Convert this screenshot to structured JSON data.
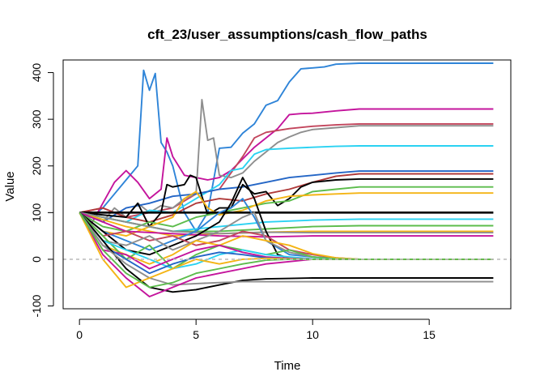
{
  "chart_data": {
    "type": "line",
    "title": "cft_23/user_assumptions/cash_flow_paths",
    "xlabel": "Time",
    "ylabel": "Value",
    "xlim": [
      -0.7,
      18.5
    ],
    "ylim": [
      -106,
      427
    ],
    "x_ticks": [
      0,
      5,
      10,
      15
    ],
    "x_tick_labels": [
      "0",
      "5",
      "10",
      "15"
    ],
    "y_ticks": [
      -100,
      0,
      100,
      200,
      300,
      400
    ],
    "y_tick_labels": [
      "-100",
      "0",
      "100",
      "200",
      "300",
      "400"
    ],
    "grid": false,
    "legend": "none",
    "reference_line": {
      "y": 0,
      "color": "#bebebe",
      "style": "dashed"
    },
    "series": [
      {
        "color": "#2e84d8",
        "x": [
          0,
          0.5,
          1,
          1.5,
          2,
          2.5,
          2.75,
          3,
          3.25,
          3.5,
          3.75,
          4,
          4.5,
          5,
          5.5,
          6,
          6.5,
          7,
          7.5,
          8,
          8.5,
          9,
          9.5,
          10,
          10.5,
          11,
          12,
          14,
          16,
          17.75
        ],
        "values": [
          100,
          90,
          110,
          140,
          170,
          200,
          405,
          362,
          398,
          250,
          230,
          200,
          100,
          60,
          100,
          238,
          240,
          270,
          290,
          330,
          340,
          380,
          408,
          410,
          412,
          418,
          420,
          420,
          420,
          420
        ]
      },
      {
        "color": "#c4149c",
        "x": [
          0,
          0.5,
          1,
          1.5,
          2,
          2.5,
          3,
          3.5,
          3.75,
          4,
          4.5,
          5,
          5.5,
          6,
          6.5,
          7,
          7.5,
          8,
          8.5,
          9,
          9.5,
          10,
          11,
          12,
          14,
          16,
          17.75
        ],
        "values": [
          100,
          75,
          120,
          165,
          190,
          165,
          130,
          150,
          260,
          220,
          180,
          175,
          170,
          175,
          190,
          215,
          240,
          260,
          280,
          310,
          312,
          313,
          318,
          322,
          322,
          322,
          322
        ]
      },
      {
        "color": "#c2455c",
        "x": [
          0,
          1,
          2,
          3,
          4,
          5,
          6,
          7,
          7.5,
          8,
          9,
          10,
          11,
          12,
          14,
          16,
          17.75
        ],
        "values": [
          100,
          110,
          90,
          100,
          110,
          140,
          150,
          220,
          260,
          272,
          280,
          285,
          288,
          290,
          290,
          290,
          290
        ]
      },
      {
        "color": "#8e8e8e",
        "x": [
          0,
          0.5,
          1,
          1.5,
          2,
          2.5,
          3,
          3.5,
          4,
          4.5,
          5,
          5.25,
          5.5,
          5.75,
          6,
          6.5,
          7,
          7.5,
          8,
          8.5,
          9,
          9.5,
          10,
          11,
          12,
          14,
          16,
          17.75
        ],
        "values": [
          100,
          95,
          80,
          110,
          90,
          120,
          100,
          115,
          110,
          130,
          140,
          342,
          255,
          260,
          180,
          175,
          185,
          210,
          230,
          250,
          262,
          272,
          278,
          282,
          286,
          286,
          286,
          286
        ]
      },
      {
        "color": "#2ad2f2",
        "x": [
          0,
          1,
          2,
          3,
          4,
          5,
          6,
          6.5,
          7,
          7.5,
          8,
          9,
          10,
          11,
          12,
          14,
          16,
          17.75
        ],
        "values": [
          100,
          90,
          80,
          105,
          100,
          130,
          160,
          190,
          195,
          225,
          235,
          238,
          240,
          242,
          243,
          243,
          243,
          243
        ]
      },
      {
        "color": "#2466c6",
        "x": [
          0,
          1,
          2,
          3,
          4,
          5,
          6,
          7,
          8,
          9,
          10,
          11,
          12,
          14,
          16,
          17.75
        ],
        "values": [
          100,
          80,
          110,
          120,
          135,
          140,
          150,
          155,
          165,
          175,
          180,
          185,
          189,
          189,
          189,
          189
        ]
      },
      {
        "color": "#b03a3a",
        "x": [
          0,
          1,
          2,
          3,
          4,
          5,
          6,
          7,
          8,
          9,
          10,
          11,
          12,
          14,
          16,
          17.75
        ],
        "values": [
          100,
          110,
          90,
          80,
          95,
          120,
          130,
          125,
          140,
          150,
          165,
          178,
          183,
          183,
          183,
          183
        ]
      },
      {
        "color": "#000000",
        "x": [
          0,
          1,
          2,
          2.5,
          3,
          3.5,
          3.75,
          4,
          4.5,
          4.75,
          5,
          5.5,
          6,
          6.5,
          7,
          7.5,
          8,
          8.5,
          9,
          9.5,
          10,
          11,
          12,
          14,
          16,
          17.75
        ],
        "values": [
          100,
          95,
          90,
          120,
          70,
          100,
          160,
          155,
          160,
          180,
          175,
          95,
          110,
          110,
          160,
          140,
          145,
          115,
          130,
          155,
          165,
          170,
          172,
          172,
          172,
          172
        ]
      },
      {
        "color": "#5cbc4c",
        "x": [
          0,
          1,
          2,
          3,
          4,
          5,
          6,
          7,
          8,
          9,
          9.5,
          10,
          11,
          12,
          14,
          16,
          17.75
        ],
        "values": [
          100,
          70,
          60,
          80,
          70,
          90,
          100,
          110,
          120,
          125,
          135,
          145,
          150,
          155,
          155,
          155,
          155
        ]
      },
      {
        "color": "#f4b414",
        "x": [
          0,
          1,
          2,
          3,
          4,
          4.5,
          5,
          5.5,
          6,
          7,
          8,
          9,
          10,
          11,
          12,
          14,
          16,
          17.75
        ],
        "values": [
          100,
          60,
          50,
          70,
          90,
          130,
          145,
          110,
          95,
          105,
          125,
          135,
          138,
          140,
          142,
          142,
          142,
          142
        ]
      },
      {
        "color": "#000000",
        "x": [
          0,
          17.75
        ],
        "values": [
          100,
          100
        ],
        "width": 2.6
      },
      {
        "color": "#2ad2f2",
        "x": [
          0,
          2,
          4,
          6,
          8,
          10,
          12,
          14,
          16,
          17.75
        ],
        "values": [
          100,
          80,
          60,
          70,
          80,
          84,
          86,
          86,
          86,
          86
        ]
      },
      {
        "color": "#5cbc4c",
        "x": [
          0,
          2,
          4,
          6,
          8,
          10,
          12,
          14,
          16,
          17.75
        ],
        "values": [
          100,
          80,
          60,
          60,
          65,
          70,
          72,
          72,
          72,
          72
        ]
      },
      {
        "color": "#f4b414",
        "x": [
          0,
          2,
          4,
          6,
          8,
          10,
          12,
          14,
          16,
          17.75
        ],
        "values": [
          100,
          70,
          50,
          55,
          58,
          60,
          60,
          60,
          60,
          60
        ]
      },
      {
        "color": "#8e8e8e",
        "x": [
          0,
          2,
          4,
          6,
          8,
          10,
          12,
          14,
          16,
          17.75
        ],
        "values": [
          100,
          80,
          60,
          55,
          58,
          57,
          57,
          57,
          57,
          57
        ]
      },
      {
        "color": "#c4149c",
        "x": [
          0,
          2,
          4,
          6,
          8,
          10,
          12,
          14,
          16,
          17.75
        ],
        "values": [
          100,
          60,
          55,
          50,
          48,
          50,
          50,
          50,
          50,
          50
        ]
      },
      {
        "color": "#2e84d8",
        "x": [
          0,
          1,
          2,
          3,
          4,
          5,
          6,
          6.5,
          7,
          7.5,
          8,
          9,
          10,
          11,
          12,
          14,
          16,
          17.75
        ],
        "values": [
          100,
          60,
          40,
          20,
          40,
          60,
          100,
          110,
          130,
          90,
          40,
          10,
          5,
          2,
          0,
          0,
          0,
          0
        ]
      },
      {
        "color": "#000000",
        "x": [
          0,
          1,
          2,
          3,
          4,
          5,
          6,
          6.5,
          7,
          7.5,
          8,
          8.5,
          9,
          10,
          12,
          14,
          16,
          17.75
        ],
        "values": [
          100,
          60,
          20,
          10,
          30,
          50,
          80,
          120,
          175,
          130,
          60,
          10,
          2,
          0,
          0,
          0,
          0,
          0
        ]
      },
      {
        "color": "#c2455c",
        "x": [
          0,
          1,
          2,
          3,
          4,
          5,
          6,
          7,
          8,
          9,
          10,
          11,
          12,
          14,
          16,
          17.75
        ],
        "values": [
          100,
          50,
          60,
          40,
          50,
          30,
          40,
          60,
          50,
          20,
          10,
          3,
          0,
          0,
          0,
          0
        ]
      },
      {
        "color": "#8e8e8e",
        "x": [
          0,
          1,
          2,
          3,
          4,
          5,
          6,
          7,
          7.5,
          8,
          9,
          10,
          11,
          12,
          14,
          16,
          17.75
        ],
        "values": [
          100,
          40,
          30,
          50,
          20,
          40,
          60,
          90,
          100,
          40,
          15,
          5,
          1,
          0,
          0,
          0,
          0
        ]
      },
      {
        "color": "#f4b414",
        "x": [
          0,
          1,
          2,
          3,
          4,
          5,
          6,
          7,
          8,
          9,
          10,
          11,
          12,
          14,
          16,
          17.75
        ],
        "values": [
          100,
          30,
          10,
          -10,
          10,
          40,
          30,
          50,
          40,
          30,
          12,
          3,
          0,
          0,
          0,
          0
        ]
      },
      {
        "color": "#5cbc4c",
        "x": [
          0,
          1,
          2,
          3,
          4,
          5,
          6,
          7,
          8,
          9,
          10,
          11,
          12,
          14,
          16,
          17.75
        ],
        "values": [
          100,
          50,
          0,
          30,
          -20,
          10,
          30,
          20,
          10,
          20,
          5,
          1,
          0,
          0,
          0,
          0
        ]
      },
      {
        "color": "#2ad2f2",
        "x": [
          0,
          1,
          2,
          3,
          4,
          5,
          6,
          7,
          8,
          9,
          10,
          11,
          12,
          14,
          16,
          17.75
        ],
        "values": [
          100,
          40,
          20,
          0,
          -20,
          -10,
          10,
          20,
          10,
          5,
          1,
          0,
          0,
          0,
          0,
          0
        ]
      },
      {
        "color": "#c4149c",
        "x": [
          0,
          1,
          2,
          3,
          4,
          5,
          6,
          7,
          8,
          9,
          10,
          11,
          12,
          14,
          16,
          17.75
        ],
        "values": [
          100,
          20,
          10,
          -20,
          0,
          20,
          30,
          15,
          5,
          2,
          0,
          0,
          0,
          0,
          0,
          0
        ]
      },
      {
        "color": "#2466c6",
        "x": [
          0,
          1,
          2,
          3,
          4,
          5,
          6,
          7,
          8,
          9,
          10,
          12,
          14,
          16,
          17.75
        ],
        "values": [
          100,
          30,
          0,
          -30,
          -10,
          5,
          15,
          10,
          3,
          1,
          0,
          0,
          0,
          0,
          0
        ]
      },
      {
        "color": "#000000",
        "x": [
          0,
          1,
          2,
          3,
          4,
          5,
          6,
          7,
          8,
          9,
          10,
          11,
          12,
          14,
          16,
          17.75
        ],
        "values": [
          100,
          40,
          -20,
          -60,
          -70,
          -65,
          -55,
          -45,
          -42,
          -41,
          -40,
          -40,
          -40,
          -40,
          -40,
          -40
        ]
      },
      {
        "color": "#8e8e8e",
        "x": [
          0,
          1,
          2,
          3,
          4,
          5,
          6,
          7,
          8,
          9,
          10,
          11,
          12,
          14,
          16,
          17.75
        ],
        "values": [
          100,
          30,
          -10,
          -40,
          -55,
          -52,
          -50,
          -48,
          -48,
          -48,
          -48,
          -48,
          -48,
          -48,
          -48,
          -48
        ]
      },
      {
        "color": "#c4149c",
        "x": [
          0,
          1,
          2,
          3,
          4,
          5,
          6,
          7,
          8,
          9,
          10,
          12,
          14,
          16,
          17.75
        ],
        "values": [
          100,
          10,
          -40,
          -80,
          -60,
          -40,
          -30,
          -20,
          -10,
          -5,
          0,
          0,
          0,
          0,
          0
        ]
      },
      {
        "color": "#f4b414",
        "x": [
          0,
          1,
          2,
          3,
          4,
          5,
          6,
          7,
          8,
          9,
          10,
          12,
          14,
          16,
          17.75
        ],
        "values": [
          100,
          0,
          -60,
          -40,
          -20,
          0,
          -10,
          0,
          2,
          1,
          0,
          0,
          0,
          0,
          0
        ]
      },
      {
        "color": "#5cbc4c",
        "x": [
          0,
          1,
          2,
          3,
          4,
          5,
          6,
          7,
          8,
          9,
          10,
          12,
          14,
          16,
          17.75
        ],
        "values": [
          100,
          20,
          -30,
          -60,
          -50,
          -30,
          -20,
          -10,
          -2,
          0,
          0,
          0,
          0,
          0,
          0
        ]
      }
    ]
  }
}
